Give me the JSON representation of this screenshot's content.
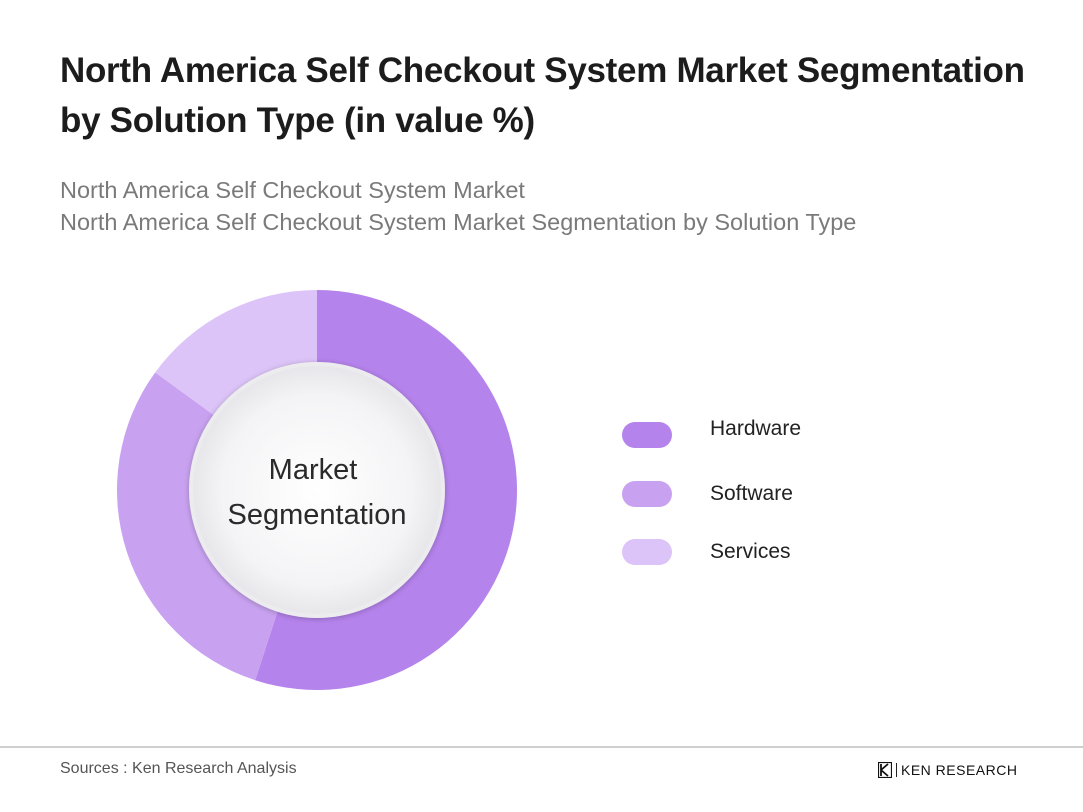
{
  "header": {
    "title": "North America Self Checkout System Market Segmentation by Solution Type (in value %)",
    "subtitle_line1": "North America Self Checkout System Market",
    "subtitle_line2": "North America Self Checkout System Market Segmentation by Solution Type"
  },
  "chart_data": {
    "type": "pie",
    "variant": "donut",
    "center_label": [
      "Market",
      "Segmentation"
    ],
    "categories": [
      "Hardware",
      "Software",
      "Services"
    ],
    "values": [
      55,
      30,
      15
    ],
    "colors": [
      "#b583ec",
      "#c8a2f0",
      "#dcc4f8"
    ],
    "legend_position": "right"
  },
  "footer": {
    "sources": "Sources : Ken Research Analysis",
    "brand": "KEN RESEARCH"
  }
}
